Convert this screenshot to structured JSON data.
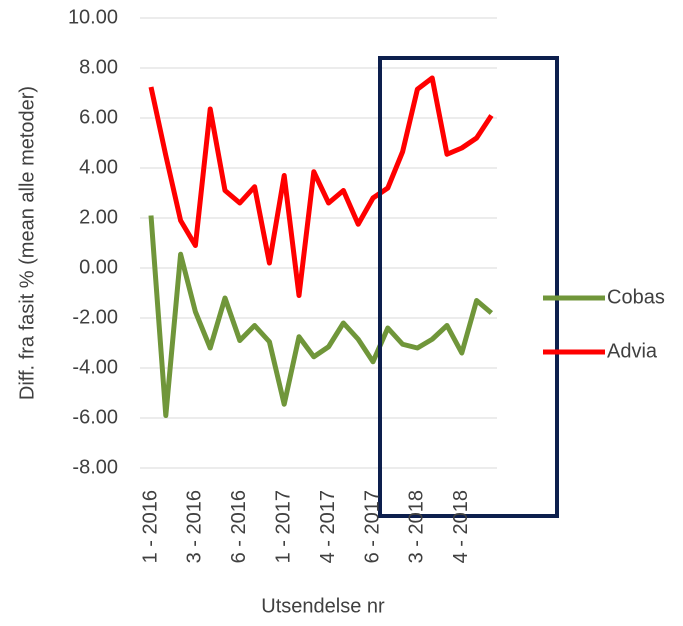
{
  "chart_data": {
    "type": "line",
    "y_label": "Diff. fra fasit % (mean alle metoder)",
    "x_label": "Utsendelse nr",
    "categories": [
      "1 - 2016",
      null,
      null,
      "3 - 2016",
      null,
      null,
      "6 - 2016",
      null,
      null,
      "1 - 2017",
      null,
      null,
      "4 - 2017",
      null,
      null,
      "6 - 2017",
      null,
      null,
      "3 - 2018",
      null,
      null,
      "4 - 2018",
      null,
      null
    ],
    "series": [
      {
        "name": "Cobas",
        "color": "#70963a",
        "values": [
          2.1,
          -5.9,
          0.55,
          -1.75,
          -3.2,
          -1.2,
          -2.9,
          -2.3,
          -2.95,
          -5.45,
          -2.75,
          -3.55,
          -3.15,
          -2.2,
          -2.85,
          -3.75,
          -2.4,
          -3.05,
          -3.2,
          -2.85,
          -2.3,
          -3.4,
          -1.3,
          -1.8
        ]
      },
      {
        "name": "Advia",
        "color": "#ff0000",
        "values": [
          7.24,
          4.5,
          1.9,
          0.9,
          6.36,
          3.1,
          2.6,
          3.25,
          0.2,
          3.7,
          -1.1,
          3.85,
          2.6,
          3.1,
          1.75,
          2.8,
          3.2,
          4.65,
          7.15,
          7.6,
          4.55,
          4.8,
          5.2,
          6.1
        ]
      }
    ],
    "ylim": [
      -8,
      10
    ],
    "yticks": [
      {
        "value": -8,
        "label": "-8.00"
      },
      {
        "value": -6,
        "label": "-6.00"
      },
      {
        "value": -4,
        "label": "-4.00"
      },
      {
        "value": -2,
        "label": "-2.00"
      },
      {
        "value": 0,
        "label": "0.00"
      },
      {
        "value": 2,
        "label": "2.00"
      },
      {
        "value": 4,
        "label": "4.00"
      },
      {
        "value": 6,
        "label": "6.00"
      },
      {
        "value": 8,
        "label": "8.00"
      },
      {
        "value": 10,
        "label": "10.00"
      }
    ],
    "grid": true,
    "legend": "right"
  }
}
